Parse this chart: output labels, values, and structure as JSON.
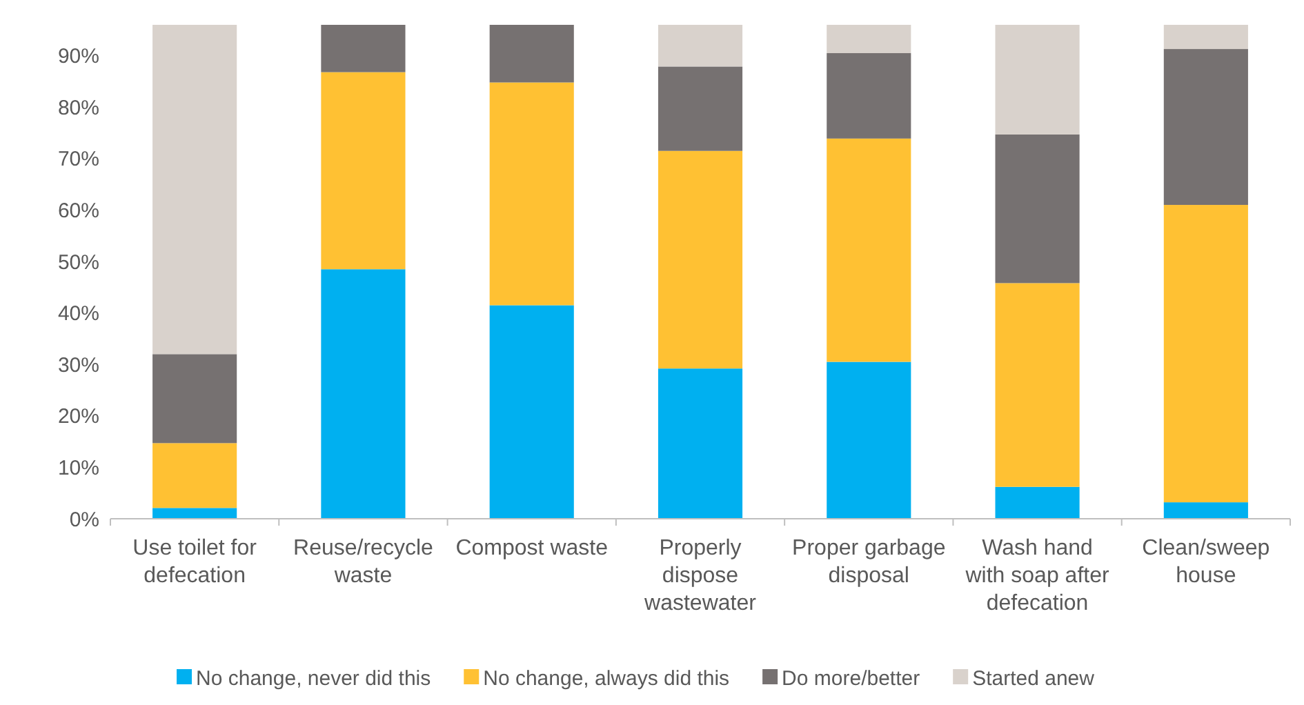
{
  "chart_data": {
    "type": "bar",
    "stacked": true,
    "categories": [
      "Use toilet for defecation",
      "Reuse/recycle waste",
      "Compost waste",
      "Properly dispose wastewater",
      "Proper garbage disposal",
      "Wash hand with soap after defecation",
      "Clean/sweep house"
    ],
    "series": [
      {
        "name": "No change, never did this",
        "color": "#00b0f0",
        "values": [
          2.1,
          48.5,
          41.5,
          29.2,
          30.5,
          6.2,
          3.2
        ]
      },
      {
        "name": "No change, always did this",
        "color": "#ffc133",
        "values": [
          12.6,
          38.3,
          43.3,
          42.3,
          43.4,
          39.6,
          57.8
        ]
      },
      {
        "name": "Do more/better",
        "color": "#767171",
        "values": [
          17.3,
          9.2,
          11.2,
          16.4,
          16.6,
          28.9,
          30.3
        ]
      },
      {
        "name": "Started anew",
        "color": "#d9d2cc",
        "values": [
          64,
          0,
          0,
          8.1,
          5.5,
          21.3,
          4.7
        ]
      }
    ],
    "ylim": [
      0,
      96
    ],
    "yticks": [
      {
        "value": 0,
        "label": "0%"
      },
      {
        "value": 10,
        "label": "10%"
      },
      {
        "value": 20,
        "label": "20%"
      },
      {
        "value": 30,
        "label": "30%"
      },
      {
        "value": 40,
        "label": "40%"
      },
      {
        "value": 50,
        "label": "50%"
      },
      {
        "value": 60,
        "label": "60%"
      },
      {
        "value": 70,
        "label": "70%"
      },
      {
        "value": 80,
        "label": "80%"
      },
      {
        "value": 90,
        "label": "90%"
      }
    ],
    "grid": false,
    "legend": "bottom"
  }
}
